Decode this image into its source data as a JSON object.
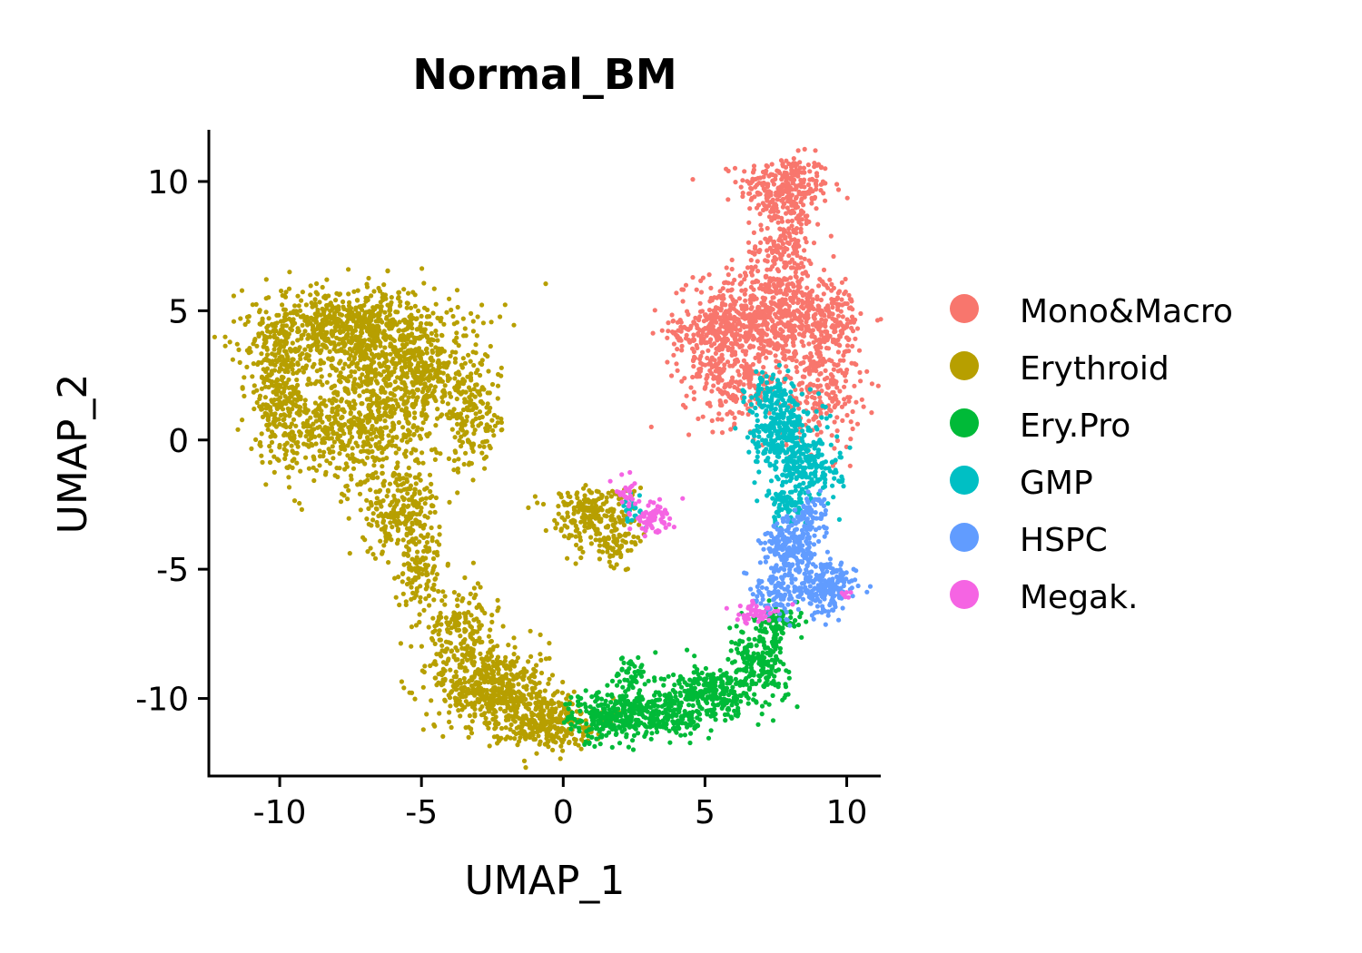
{
  "chart_data": {
    "type": "scatter",
    "title": "Normal_BM",
    "xlabel": "UMAP_1",
    "ylabel": "UMAP_2",
    "xlim": [
      -12.5,
      11.2
    ],
    "ylim": [
      -13.0,
      12.0
    ],
    "x_ticks": [
      -10,
      -5,
      0,
      5,
      10
    ],
    "x_tick_labels": [
      "-10",
      "-5",
      "0",
      "5",
      "10"
    ],
    "y_ticks": [
      -10,
      -5,
      0,
      5,
      10
    ],
    "y_tick_labels": [
      "-10",
      "-5",
      "0",
      "5",
      "10"
    ],
    "grid": false,
    "legend_position": "right",
    "series": [
      {
        "name": "Mono&Macro",
        "color": "#F8766D",
        "clusters": [
          {
            "cx": 7.8,
            "cy": 9.8,
            "sx": 0.8,
            "sy": 0.6,
            "n": 260
          },
          {
            "cx": 7.8,
            "cy": 7.6,
            "sx": 0.5,
            "sy": 0.9,
            "n": 200
          },
          {
            "cx": 7.3,
            "cy": 4.8,
            "sx": 1.3,
            "sy": 0.9,
            "n": 620
          },
          {
            "cx": 5.3,
            "cy": 4.2,
            "sx": 0.8,
            "sy": 0.5,
            "n": 160
          },
          {
            "cx": 6.0,
            "cy": 2.4,
            "sx": 0.9,
            "sy": 0.9,
            "n": 260
          },
          {
            "cx": 9.1,
            "cy": 2.2,
            "sx": 0.7,
            "sy": 1.3,
            "n": 260
          },
          {
            "cx": 9.5,
            "cy": 4.8,
            "sx": 0.4,
            "sy": 0.8,
            "n": 100
          }
        ]
      },
      {
        "name": "Erythroid",
        "color": "#B79F00",
        "clusters": [
          {
            "cx": -7.5,
            "cy": 4.3,
            "sx": 1.9,
            "sy": 0.8,
            "n": 700
          },
          {
            "cx": -10.0,
            "cy": 2.0,
            "sx": 0.6,
            "sy": 1.4,
            "n": 300
          },
          {
            "cx": -6.6,
            "cy": 1.5,
            "sx": 1.1,
            "sy": 1.7,
            "n": 650
          },
          {
            "cx": -4.7,
            "cy": 2.6,
            "sx": 0.6,
            "sy": 0.9,
            "n": 200
          },
          {
            "cx": -3.2,
            "cy": 1.0,
            "sx": 0.5,
            "sy": 1.1,
            "n": 180
          },
          {
            "cx": -8.4,
            "cy": 0.2,
            "sx": 1.0,
            "sy": 0.8,
            "n": 200
          },
          {
            "cx": -5.7,
            "cy": -2.8,
            "sx": 0.7,
            "sy": 0.8,
            "n": 220
          },
          {
            "cx": -5.0,
            "cy": -5.0,
            "sx": 0.4,
            "sy": 0.8,
            "n": 110
          },
          {
            "cx": -3.6,
            "cy": -7.4,
            "sx": 0.6,
            "sy": 0.8,
            "n": 180
          },
          {
            "cx": -2.5,
            "cy": -9.6,
            "sx": 1.0,
            "sy": 0.8,
            "n": 500
          },
          {
            "cx": -0.7,
            "cy": -10.9,
            "sx": 0.9,
            "sy": 0.5,
            "n": 300
          },
          {
            "cx": 1.0,
            "cy": -2.9,
            "sx": 0.8,
            "sy": 0.6,
            "n": 230
          },
          {
            "cx": 1.8,
            "cy": -4.1,
            "sx": 0.4,
            "sy": 0.4,
            "n": 60
          }
        ]
      },
      {
        "name": "Ery.Pro",
        "color": "#00BA38",
        "clusters": [
          {
            "cx": 1.3,
            "cy": -10.8,
            "sx": 0.6,
            "sy": 0.5,
            "n": 160
          },
          {
            "cx": 3.2,
            "cy": -10.6,
            "sx": 1.0,
            "sy": 0.5,
            "n": 320
          },
          {
            "cx": 5.3,
            "cy": -9.8,
            "sx": 0.8,
            "sy": 0.5,
            "n": 260
          },
          {
            "cx": 6.9,
            "cy": -8.6,
            "sx": 0.5,
            "sy": 0.6,
            "n": 180
          },
          {
            "cx": 7.6,
            "cy": -7.1,
            "sx": 0.4,
            "sy": 0.3,
            "n": 80
          },
          {
            "cx": 2.4,
            "cy": -9.0,
            "sx": 0.3,
            "sy": 0.4,
            "n": 50
          }
        ]
      },
      {
        "name": "GMP",
        "color": "#00BFC4",
        "clusters": [
          {
            "cx": 7.7,
            "cy": 0.4,
            "sx": 0.5,
            "sy": 0.8,
            "n": 260
          },
          {
            "cx": 8.6,
            "cy": -0.9,
            "sx": 0.6,
            "sy": 0.7,
            "n": 220
          },
          {
            "cx": 7.3,
            "cy": 1.8,
            "sx": 0.4,
            "sy": 0.4,
            "n": 70
          },
          {
            "cx": 7.9,
            "cy": -2.5,
            "sx": 0.4,
            "sy": 0.4,
            "n": 80
          },
          {
            "cx": 2.5,
            "cy": -2.7,
            "sx": 0.2,
            "sy": 0.3,
            "n": 25
          }
        ]
      },
      {
        "name": "HSPC",
        "color": "#619CFF",
        "clusters": [
          {
            "cx": 8.0,
            "cy": -4.2,
            "sx": 0.5,
            "sy": 0.6,
            "n": 220
          },
          {
            "cx": 9.3,
            "cy": -5.7,
            "sx": 0.5,
            "sy": 0.5,
            "n": 200
          },
          {
            "cx": 7.6,
            "cy": -6.0,
            "sx": 0.5,
            "sy": 0.4,
            "n": 100
          },
          {
            "cx": 8.7,
            "cy": -3.0,
            "sx": 0.3,
            "sy": 0.5,
            "n": 70
          }
        ]
      },
      {
        "name": "Megak.",
        "color": "#F564E3",
        "clusters": [
          {
            "cx": 3.1,
            "cy": -3.0,
            "sx": 0.4,
            "sy": 0.3,
            "n": 70
          },
          {
            "cx": 2.2,
            "cy": -2.0,
            "sx": 0.2,
            "sy": 0.3,
            "n": 25
          },
          {
            "cx": 6.8,
            "cy": -6.7,
            "sx": 0.4,
            "sy": 0.2,
            "n": 45
          },
          {
            "cx": 10.0,
            "cy": -6.0,
            "sx": 0.1,
            "sy": 0.1,
            "n": 6
          }
        ]
      }
    ]
  }
}
